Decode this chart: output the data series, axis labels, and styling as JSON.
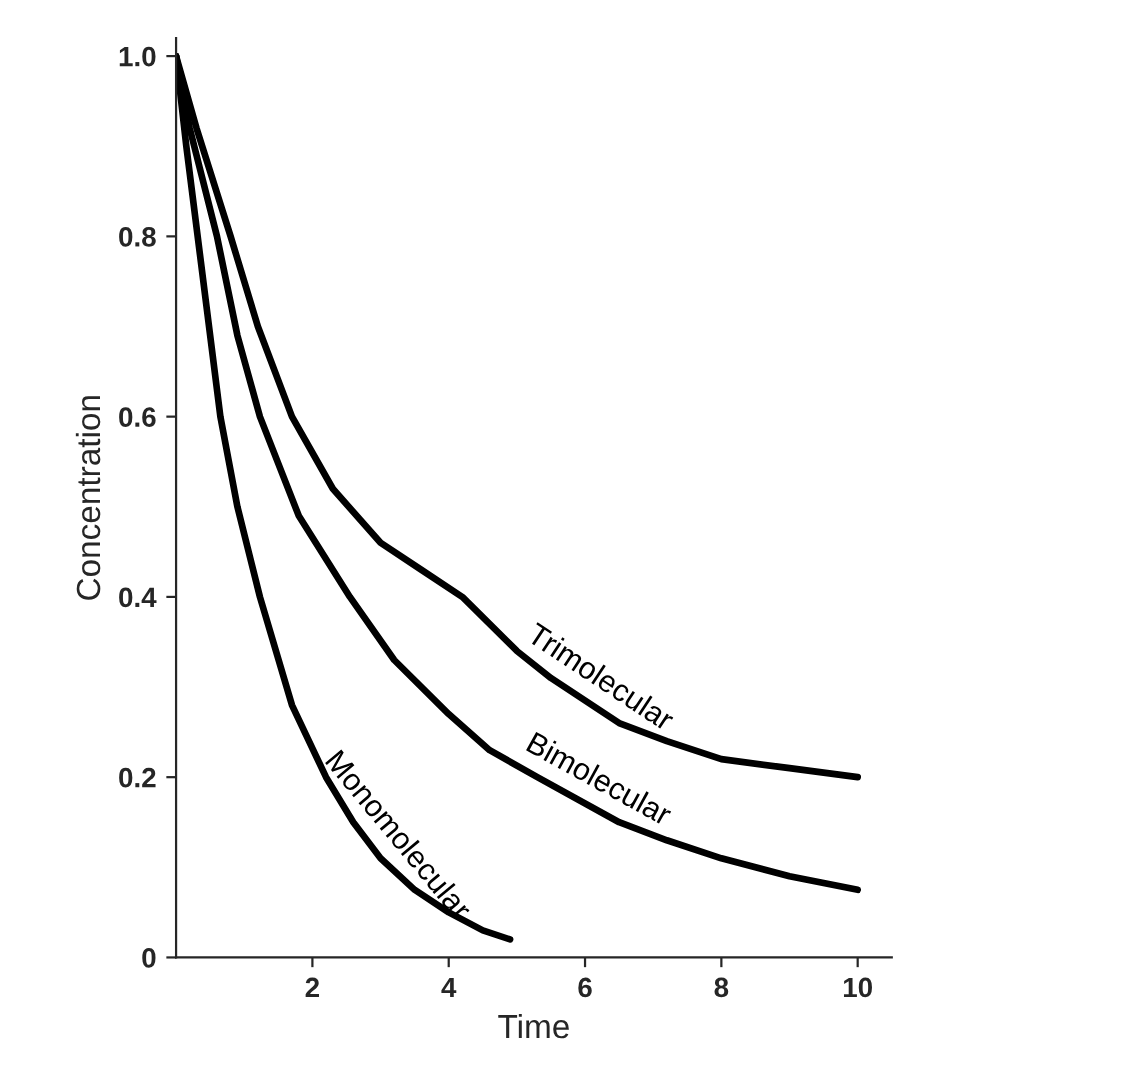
{
  "chart_data": {
    "type": "line",
    "xlabel": "Time",
    "ylabel": "Concentration",
    "series": [
      {
        "name": "Monomolecular",
        "color": "#000000",
        "x": [
          0,
          0.15,
          0.35,
          0.65,
          0.9,
          1.23,
          1.7,
          2.2,
          2.6,
          3,
          3.5,
          4,
          4.5,
          4.9
        ],
        "values": [
          1.0,
          0.9,
          0.78,
          0.6,
          0.5,
          0.4,
          0.28,
          0.2,
          0.15,
          0.11,
          0.075,
          0.05,
          0.03,
          0.02
        ]
      },
      {
        "name": "Bimolecular",
        "color": "#000000",
        "x": [
          0,
          0.2,
          0.6,
          0.9,
          1.23,
          1.8,
          2.55,
          3.2,
          4,
          4.6,
          5.3,
          6.5,
          7.2,
          8,
          9,
          10
        ],
        "values": [
          1.0,
          0.92,
          0.8,
          0.69,
          0.6,
          0.49,
          0.4,
          0.33,
          0.27,
          0.23,
          0.2,
          0.15,
          0.13,
          0.11,
          0.09,
          0.075
        ]
      },
      {
        "name": "Trimolecular",
        "color": "#000000",
        "x": [
          0,
          0.3,
          0.8,
          1.2,
          1.7,
          2.3,
          3,
          3.6,
          4.2,
          5,
          5.5,
          6.5,
          7.2,
          8,
          9,
          10
        ],
        "values": [
          1.0,
          0.92,
          0.8,
          0.7,
          0.6,
          0.52,
          0.46,
          0.43,
          0.4,
          0.34,
          0.31,
          0.26,
          0.24,
          0.22,
          0.21,
          0.2
        ]
      }
    ],
    "xlim": [
      0,
      10.5
    ],
    "ylim": [
      0,
      1.02
    ],
    "xticks": [
      2,
      4,
      6,
      8,
      10
    ],
    "yticks": [
      0,
      0.2,
      0.4,
      0.6,
      0.8,
      {
        "value": 1.0,
        "label": "1.0"
      }
    ],
    "grid": false,
    "legend": false,
    "marker": "none",
    "line_style": "solid"
  }
}
